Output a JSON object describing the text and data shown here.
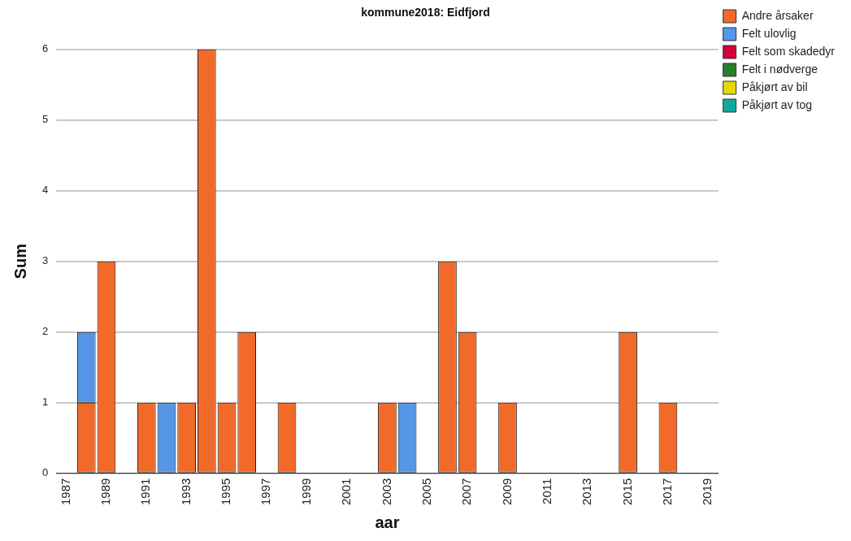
{
  "chart_data": {
    "type": "bar",
    "title": "kommune2018: Eidfjord",
    "xlabel": "aar",
    "ylabel": "Sum",
    "categories": [
      "1987",
      null,
      "1989",
      null,
      "1991",
      null,
      "1993",
      null,
      "1995",
      null,
      "1997",
      null,
      "1999",
      null,
      "2001",
      null,
      "2003",
      null,
      "2005",
      null,
      "2007",
      null,
      "2009",
      null,
      "2011",
      null,
      "2013",
      null,
      "2015",
      null,
      "2017",
      null,
      "2019"
    ],
    "stacked": true,
    "series": [
      {
        "name": "Andre årsaker",
        "color": "#f26a2a",
        "values": [
          0,
          1,
          3,
          0,
          1,
          0,
          1,
          6,
          1,
          2,
          0,
          1,
          0,
          0,
          0,
          0,
          1,
          0,
          0,
          3,
          2,
          0,
          1,
          0,
          0,
          0,
          0,
          0,
          2,
          0,
          1,
          0,
          0
        ]
      },
      {
        "name": "Felt ulovlig",
        "color": "#5596e6",
        "values": [
          0,
          1,
          0,
          0,
          0,
          1,
          0,
          0,
          0,
          0,
          0,
          0,
          0,
          0,
          0,
          0,
          0,
          1,
          0,
          0,
          0,
          0,
          0,
          0,
          0,
          0,
          0,
          0,
          0,
          0,
          0,
          0,
          0
        ]
      },
      {
        "name": "Felt som skadedyr",
        "color": "#d6003a",
        "values": [
          0,
          0,
          0,
          0,
          0,
          0,
          0,
          0,
          0,
          0,
          0,
          0,
          0,
          0,
          0,
          0,
          0,
          0,
          0,
          0,
          0,
          0,
          0,
          0,
          0,
          0,
          0,
          0,
          0,
          0,
          0,
          0,
          0
        ]
      },
      {
        "name": "Felt i nødverge",
        "color": "#2b7f2b",
        "values": [
          0,
          0,
          0,
          0,
          0,
          0,
          0,
          0,
          0,
          0,
          0,
          0,
          0,
          0,
          0,
          0,
          0,
          0,
          0,
          0,
          0,
          0,
          0,
          0,
          0,
          0,
          0,
          0,
          0,
          0,
          0,
          0,
          0
        ]
      },
      {
        "name": "Påkjørt av bil",
        "color": "#e6d800",
        "values": [
          0,
          0,
          0,
          0,
          0,
          0,
          0,
          0,
          0,
          0,
          0,
          0,
          0,
          0,
          0,
          0,
          0,
          0,
          0,
          0,
          0,
          0,
          0,
          0,
          0,
          0,
          0,
          0,
          0,
          0,
          0,
          0,
          0
        ]
      },
      {
        "name": "Påkjørt av tog",
        "color": "#12a89a",
        "values": [
          0,
          0,
          0,
          0,
          0,
          0,
          0,
          0,
          0,
          0,
          0,
          0,
          0,
          0,
          0,
          0,
          0,
          0,
          0,
          0,
          0,
          0,
          0,
          0,
          0,
          0,
          0,
          0,
          0,
          0,
          0,
          0,
          0
        ]
      }
    ],
    "ylim": [
      0,
      6
    ],
    "yticks": [
      0,
      1,
      2,
      3,
      4,
      5,
      6
    ],
    "grid": "y",
    "legend": "top right"
  }
}
